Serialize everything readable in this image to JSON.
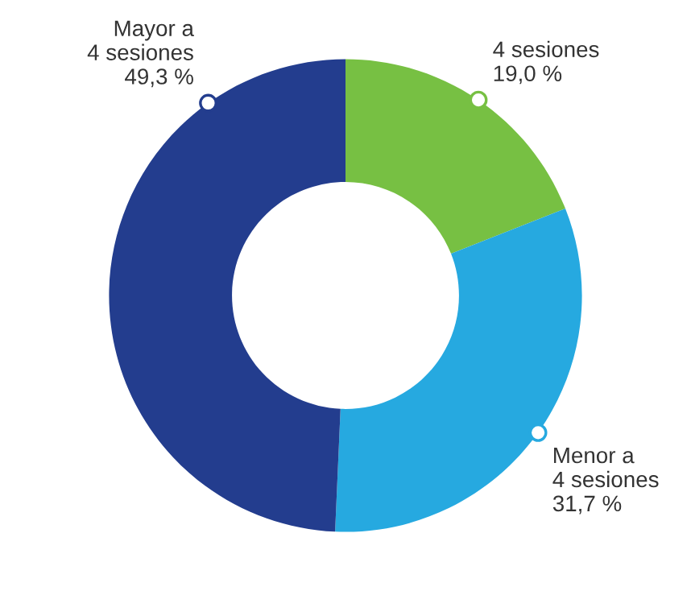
{
  "chart_data": {
    "type": "donut",
    "categories": [
      "4 sesiones",
      "Menor a 4 sesiones",
      "Mayor a 4 sesiones"
    ],
    "values": [
      19.0,
      31.7,
      49.3
    ],
    "value_labels": [
      "19,0 %",
      "31,7 %",
      "49,3 %"
    ],
    "colors": [
      "#77c043",
      "#26a9e0",
      "#233d8e"
    ]
  }
}
